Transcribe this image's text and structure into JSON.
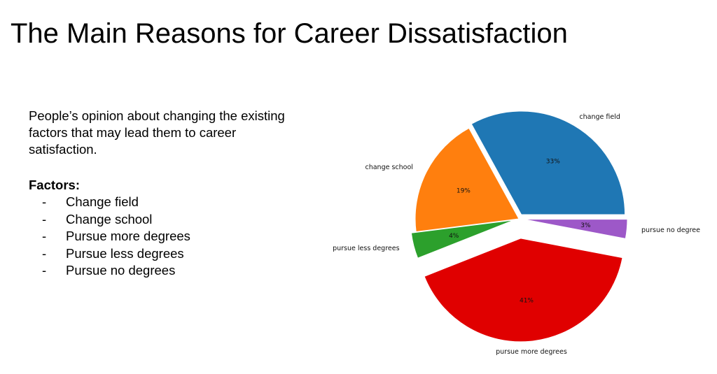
{
  "slide": {
    "title": "The Main Reasons for Career Dissatisfaction",
    "intro": "People’s opinion about changing the existing  factors that may lead them to career satisfaction.",
    "factors_heading": "Factors:",
    "factors": [
      {
        "dash": "-",
        "label": "Change field"
      },
      {
        "dash": "-",
        "label": "Change school"
      },
      {
        "dash": "-",
        "label": "Pursue more degrees"
      },
      {
        "dash": "-",
        "label": "Pursue less degrees"
      },
      {
        "dash": "-",
        "label": "Pursue no degrees"
      }
    ]
  },
  "chart_data": {
    "type": "pie",
    "title": "",
    "start_angle_deg": 0,
    "direction": "counterclockwise",
    "exploded": true,
    "slices": [
      {
        "label": "change field",
        "value": 33,
        "pct_label": "33%",
        "color": "#1f77b4"
      },
      {
        "label": "change school",
        "value": 19,
        "pct_label": "19%",
        "color": "#ff7f0e"
      },
      {
        "label": "pursue less degrees",
        "value": 4,
        "pct_label": "4%",
        "color": "#2ca02c"
      },
      {
        "label": "pursue more degrees",
        "value": 41,
        "pct_label": "41%",
        "color": "#e00000"
      },
      {
        "label": "pursue no degree",
        "value": 3,
        "pct_label": "3%",
        "color": "#9d58c8"
      }
    ]
  }
}
